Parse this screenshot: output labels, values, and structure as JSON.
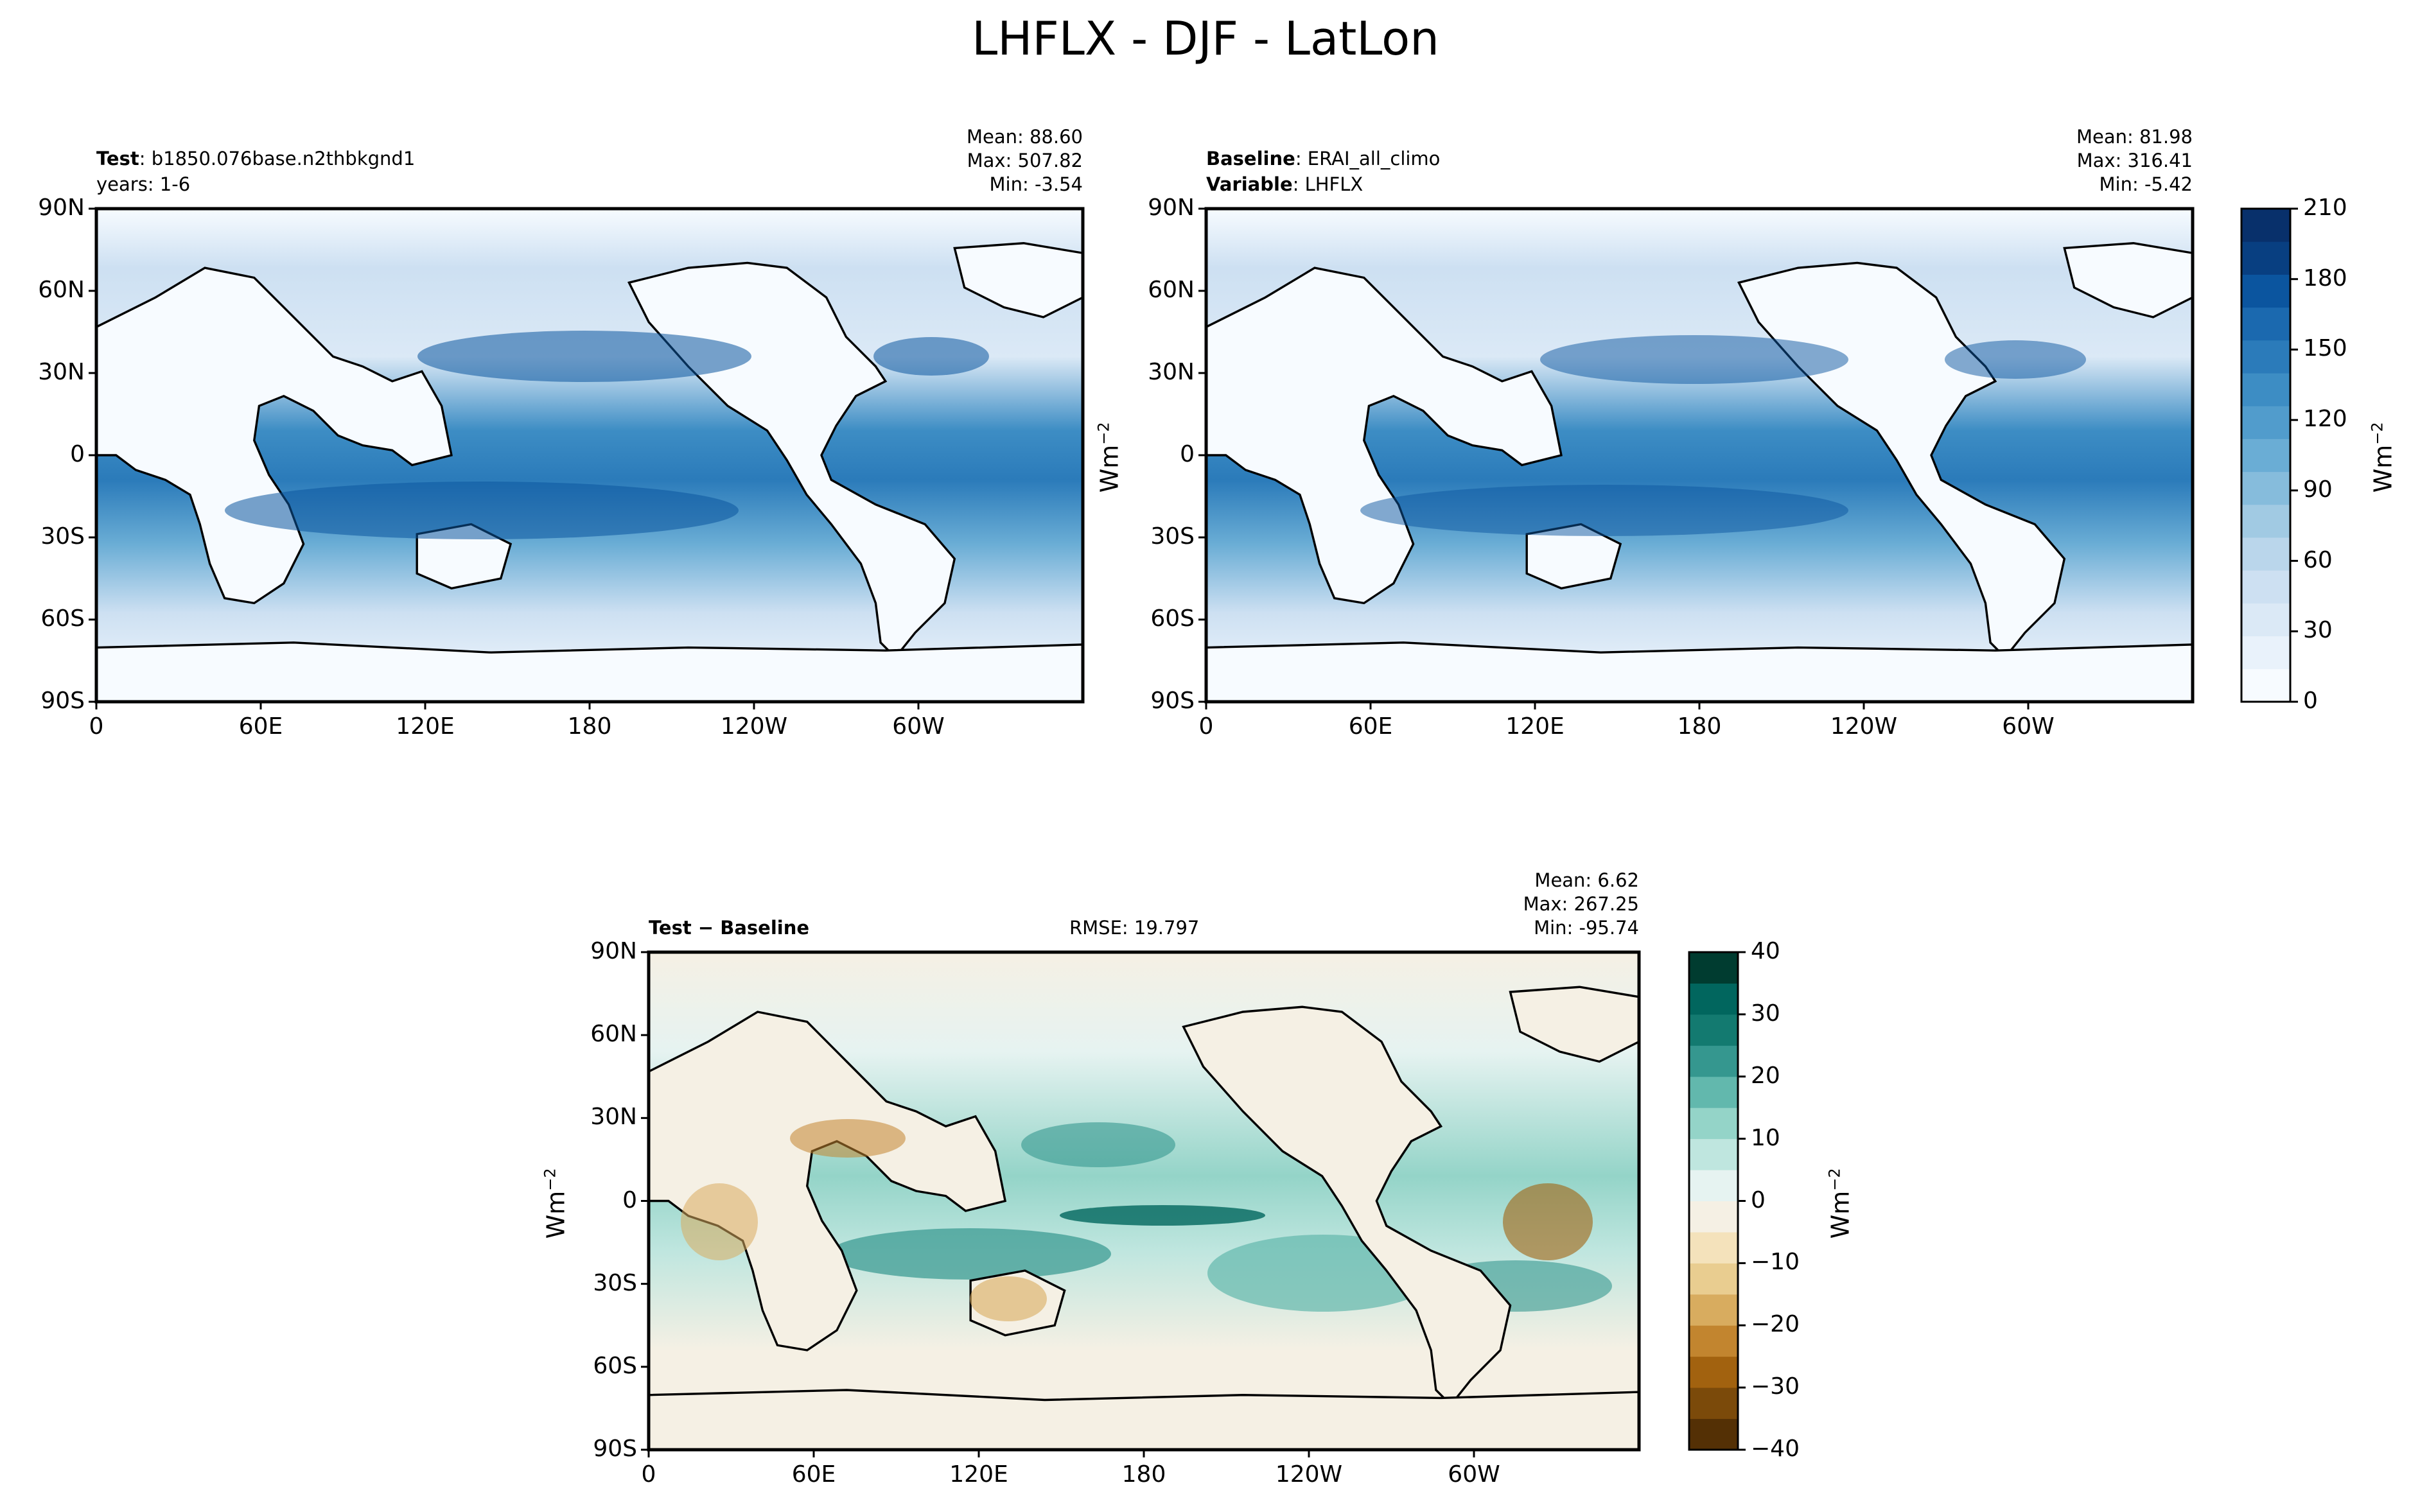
{
  "figure_title": "LHFLX - DJF - LatLon",
  "chart_data": [
    {
      "type": "heatmap",
      "panel": "test",
      "label_bold": "Test",
      "label_text": ": b1850.076base.n2thbkgnd1",
      "sub_label": "years: 1-6",
      "stats": [
        "Mean: 88.60",
        "Max: 507.82",
        "Min: -3.54"
      ],
      "xticks": [
        "0",
        "60E",
        "120E",
        "180",
        "120W",
        "60W"
      ],
      "yticks": [
        "90N",
        "60N",
        "30N",
        "0",
        "30S",
        "60S",
        "90S"
      ],
      "xlim": [
        0,
        360
      ],
      "ylim": [
        -90,
        90
      ],
      "colorbar": {
        "ticks": [
          "210",
          "180",
          "150",
          "120",
          "90",
          "60",
          "30",
          "0"
        ],
        "range": [
          0,
          210
        ],
        "unit": "Wm",
        "unit_exp": "−2"
      }
    },
    {
      "type": "heatmap",
      "panel": "baseline",
      "label_bold": "Baseline",
      "label_text": ": ERAI_all_climo",
      "label2_bold": "Variable",
      "label2_text": ": LHFLX",
      "stats": [
        "Mean: 81.98",
        "Max: 316.41",
        "Min: -5.42"
      ],
      "xticks": [
        "0",
        "60E",
        "120E",
        "180",
        "120W",
        "60W"
      ],
      "yticks": [
        "90N",
        "60N",
        "30N",
        "0",
        "30S",
        "60S",
        "90S"
      ],
      "xlim": [
        0,
        360
      ],
      "ylim": [
        -90,
        90
      ],
      "unit": "Wm",
      "unit_exp": "−2"
    },
    {
      "type": "heatmap",
      "panel": "difference",
      "label_bold": "Test − Baseline",
      "rmse": "RMSE: 19.797",
      "stats": [
        "Mean:  6.62",
        "Max: 267.25",
        "Min: -95.74"
      ],
      "xticks": [
        "0",
        "60E",
        "120E",
        "180",
        "120W",
        "60W"
      ],
      "yticks": [
        "90N",
        "60N",
        "30N",
        "0",
        "30S",
        "60S",
        "90S"
      ],
      "xlim": [
        0,
        360
      ],
      "ylim": [
        -90,
        90
      ],
      "unit": "Wm",
      "unit_exp": "−2",
      "colorbar": {
        "ticks": [
          "40",
          "30",
          "20",
          "10",
          "0",
          "−10",
          "−20",
          "−30",
          "−40"
        ],
        "range": [
          -40,
          40
        ],
        "unit": "Wm",
        "unit_exp": "−2"
      }
    }
  ],
  "colors": {
    "blues": [
      "#f7fbff",
      "#e9f2fb",
      "#dbe9f6",
      "#cde0f2",
      "#bad6eb",
      "#a1cae3",
      "#86bcdc",
      "#6aadd5",
      "#519ccc",
      "#3d8dc4",
      "#2b7bba",
      "#1b69af",
      "#0b559f",
      "#083f81",
      "#08306b"
    ],
    "brbg": [
      "#543005",
      "#7b4a0a",
      "#a2620f",
      "#c2852f",
      "#d8ac5f",
      "#e9cd90",
      "#f4e2bb",
      "#f5f0e4",
      "#e6f3f1",
      "#bfe6df",
      "#94d4c8",
      "#62b8ad",
      "#35978f",
      "#137a70",
      "#01665e",
      "#003c30"
    ]
  }
}
